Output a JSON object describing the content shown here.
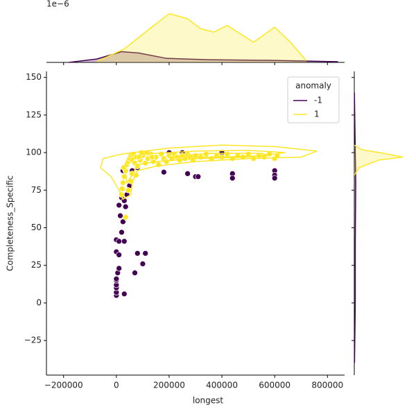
{
  "chart_data": {
    "type": "scatter",
    "xlabel": "longest",
    "ylabel": "Completeness_Specific",
    "xlim": [
      -265000,
      865000
    ],
    "ylim": [
      -48,
      154
    ],
    "xticks": [
      {
        "value": -200000,
        "label": "−200000"
      },
      0,
      200000,
      400000,
      600000,
      800000
    ],
    "yticks": [
      {
        "value": -25,
        "label": "−25"
      },
      0,
      25,
      50,
      75,
      100,
      125,
      150
    ],
    "legend_title": "anomaly",
    "legend_loc": "upper right",
    "series": [
      {
        "name": "-1",
        "color": "#440154",
        "x": [
          0,
          0,
          0,
          0,
          0,
          0,
          5000,
          10000,
          0,
          0,
          10000,
          30000,
          10000,
          30000,
          70000,
          80000,
          100000,
          110000,
          20000,
          25000,
          15000,
          35000,
          40000,
          20000,
          50000,
          25000,
          60000,
          80000,
          180000,
          270000,
          300000,
          310000,
          440000,
          440000,
          600000,
          600000,
          600000,
          200000,
          220000,
          400000,
          250000,
          120000,
          30000,
          10000
        ],
        "y": [
          5,
          7,
          10,
          12,
          15,
          16,
          20,
          23,
          34,
          42,
          41,
          41,
          32,
          6,
          20,
          33,
          26,
          33,
          47,
          54,
          58,
          64,
          72,
          70,
          78,
          88,
          88,
          90,
          87,
          86,
          84,
          84,
          86,
          83,
          88,
          85,
          83,
          100,
          99,
          100,
          100,
          100,
          68,
          65
        ]
      },
      {
        "name": "1",
        "color": "#fde725",
        "x": [
          20000,
          22000,
          25000,
          30000,
          35000,
          28000,
          40000,
          45000,
          50000,
          55000,
          60000,
          65000,
          70000,
          75000,
          80000,
          90000,
          100000,
          110000,
          120000,
          130000,
          140000,
          150000,
          160000,
          170000,
          180000,
          190000,
          200000,
          210000,
          220000,
          230000,
          240000,
          250000,
          260000,
          270000,
          280000,
          290000,
          300000,
          320000,
          340000,
          360000,
          380000,
          400000,
          420000,
          440000,
          460000,
          480000,
          500000,
          520000,
          540000,
          560000,
          580000,
          600000,
          610000,
          35000,
          60000,
          75000,
          85000,
          95000,
          115000,
          135000,
          45000,
          55000
        ],
        "y": [
          72,
          76,
          80,
          84,
          88,
          90,
          92,
          94,
          96,
          98,
          95,
          99,
          93,
          97,
          91,
          95,
          98,
          93,
          96,
          99,
          94,
          97,
          92,
          99,
          96,
          94,
          98,
          96,
          99,
          97,
          95,
          98,
          96,
          99,
          97,
          95,
          98,
          97,
          99,
          96,
          98,
          97,
          99,
          96,
          98,
          97,
          99,
          96,
          98,
          97,
          99,
          96,
          98,
          57,
          86,
          85,
          97,
          100,
          100,
          97,
          75,
          81
        ]
      }
    ],
    "kde_contours": [
      {
        "color": "#fde725",
        "x": [
          -60000,
          -50000,
          20000,
          200000,
          400000,
          600000,
          760000,
          700000,
          500000,
          300000,
          150000,
          80000,
          60000,
          55000,
          25000,
          10000,
          -20000,
          -60000
        ],
        "y": [
          90,
          96,
          99,
          103,
          105,
          104,
          101,
          97,
          96,
          94,
          91,
          88,
          80,
          72,
          69,
          75,
          84,
          90
        ]
      },
      {
        "color": "#fde725",
        "x": [
          40000,
          100000,
          300000,
          500000,
          640000,
          500000,
          300000,
          150000,
          80000,
          60000,
          40000,
          30000,
          40000
        ],
        "y": [
          95,
          99,
          101,
          101.5,
          100,
          97,
          96,
          94,
          92,
          85,
          80,
          90,
          95
        ]
      },
      {
        "color": "#fde725",
        "x": [
          200000,
          350000,
          550000,
          580000,
          400000,
          200000
        ],
        "y": [
          97,
          99.5,
          99.5,
          98,
          97,
          97
        ]
      }
    ],
    "marginal_x": {
      "offset_label": "1e−6",
      "ylim": [
        0,
        3.3
      ],
      "curves": [
        {
          "color": "#440154",
          "x": [
            -180000,
            -74000,
            20000,
            84000,
            190000,
            350000,
            600000,
            840000
          ],
          "values": [
            0,
            0.2,
            0.64,
            0.56,
            0.24,
            0.16,
            0.12,
            0.04
          ]
        },
        {
          "color": "#fde725",
          "x": [
            -74000,
            30000,
            110000,
            200000,
            270000,
            320000,
            370000,
            420000,
            520000,
            600000,
            660000,
            720000
          ],
          "values": [
            0.05,
            0.8,
            1.8,
            2.9,
            2.6,
            2.0,
            1.8,
            2.2,
            1.2,
            2.1,
            1.2,
            0.1
          ]
        }
      ]
    },
    "marginal_y": {
      "xlim": [
        0,
        1.2
      ],
      "curves": [
        {
          "color": "#440154",
          "y": [
            -40,
            0,
            40,
            80,
            100,
            140
          ],
          "values": [
            0.005,
            0.02,
            0.02,
            0.03,
            0.02,
            0.003
          ]
        },
        {
          "color": "#fde725",
          "y": [
            85,
            90,
            95,
            97,
            99,
            102,
            105
          ],
          "values": [
            0,
            0.1,
            0.5,
            1.0,
            0.7,
            0.15,
            0
          ]
        }
      ]
    }
  }
}
